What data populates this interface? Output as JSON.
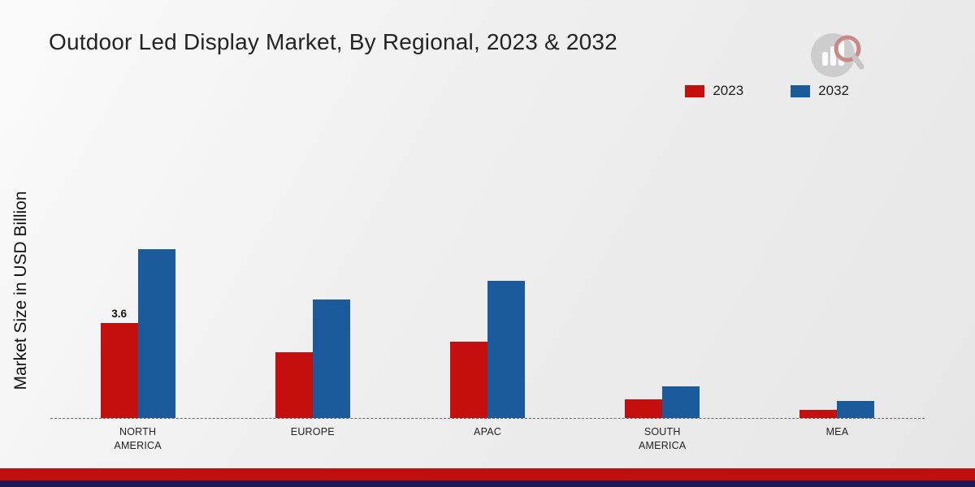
{
  "title": "Outdoor Led Display Market, By Regional, 2023 & 2032",
  "ylabel": "Market Size in USD Billion",
  "legend": [
    {
      "label": "2023",
      "color": "#c50e0e"
    },
    {
      "label": "2032",
      "color": "#1b5a9b"
    }
  ],
  "chart_data": {
    "type": "bar",
    "title": "Outdoor Led Display Market, By Regional, 2023 & 2032",
    "xlabel": "",
    "ylabel": "Market Size in USD Billion",
    "categories": [
      "NORTH AMERICA",
      "EUROPE",
      "APAC",
      "SOUTH AMERICA",
      "MEA"
    ],
    "series": [
      {
        "name": "2023",
        "color": "#c50e0e",
        "values": [
          3.6,
          2.5,
          2.9,
          0.7,
          0.3
        ],
        "labels": [
          "3.6",
          "",
          "",
          "",
          ""
        ]
      },
      {
        "name": "2032",
        "color": "#1b5a9b",
        "values": [
          6.4,
          4.5,
          5.2,
          1.2,
          0.65
        ],
        "labels": [
          "",
          "",
          "",
          "",
          ""
        ]
      }
    ],
    "ylim": [
      0,
      7
    ],
    "grid": false,
    "legend_position": "top-right",
    "baseline_style": "dashed"
  },
  "footer": {
    "red_stripe_color": "#c00d0d",
    "navy_stripe_color": "#191954"
  },
  "logo": {
    "name": "market-research-chart-logo",
    "circle_color": "#c6c6c6",
    "bars_color": "#ffffff",
    "magnifier_color": "#c2706f"
  }
}
